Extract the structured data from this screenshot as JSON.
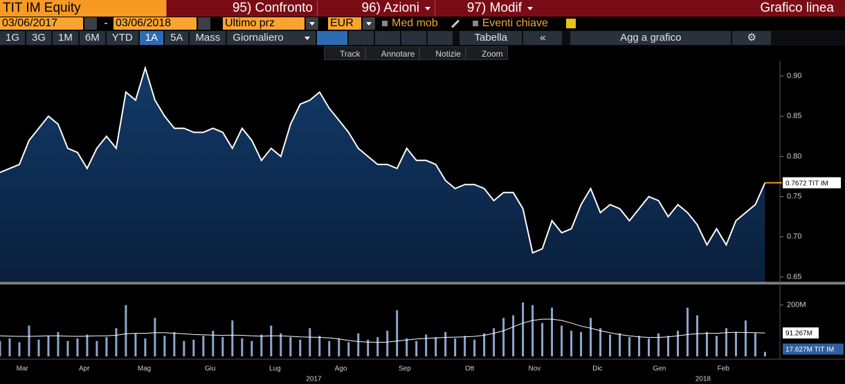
{
  "header": {
    "security": "TIT IM Equity",
    "menu": [
      "95) Confronto",
      "96) Azioni",
      "97) Modif"
    ],
    "view": "Grafico linea"
  },
  "controls": {
    "start_date": "03/06/2017",
    "separator": "-",
    "end_date": "03/06/2018",
    "field": "Ultimo prz",
    "currency": "EUR",
    "options": [
      "Med mob",
      "Eventi chiave"
    ]
  },
  "periods": [
    "1G",
    "3G",
    "1M",
    "6M",
    "YTD",
    "1A",
    "5A",
    "Mass"
  ],
  "frequency": "Giornaliero",
  "table_button": "Tabella",
  "add_button": "Agg a grafico",
  "tools": [
    "Track",
    "Annotare",
    "Notizie",
    "Zoom"
  ],
  "chart_data": [
    {
      "type": "line",
      "color": "#ffffff",
      "area_color": "#0d2a4e",
      "last_color": "#f39c1c",
      "xlim": [
        0,
        80.4
      ],
      "ylim": [
        0.644,
        0.919
      ],
      "yticks": [
        {
          "value": 0.65,
          "label": "0.65"
        },
        {
          "value": 0.7,
          "label": "0.70"
        },
        {
          "value": 0.75,
          "label": "0.75"
        },
        {
          "value": 0.8,
          "label": "0.80"
        },
        {
          "value": 0.85,
          "label": "0.85"
        },
        {
          "value": 0.9,
          "label": "0.90"
        }
      ],
      "values": [
        0.78,
        0.785,
        0.79,
        0.82,
        0.835,
        0.85,
        0.84,
        0.81,
        0.805,
        0.785,
        0.81,
        0.825,
        0.81,
        0.88,
        0.87,
        0.91,
        0.87,
        0.85,
        0.835,
        0.835,
        0.83,
        0.83,
        0.835,
        0.83,
        0.81,
        0.835,
        0.82,
        0.795,
        0.81,
        0.8,
        0.84,
        0.865,
        0.87,
        0.88,
        0.86,
        0.845,
        0.83,
        0.81,
        0.8,
        0.79,
        0.79,
        0.785,
        0.81,
        0.795,
        0.795,
        0.79,
        0.77,
        0.76,
        0.765,
        0.765,
        0.76,
        0.745,
        0.755,
        0.755,
        0.735,
        0.68,
        0.685,
        0.72,
        0.705,
        0.71,
        0.74,
        0.76,
        0.73,
        0.74,
        0.735,
        0.72,
        0.735,
        0.75,
        0.745,
        0.725,
        0.74,
        0.73,
        0.715,
        0.69,
        0.71,
        0.69,
        0.72,
        0.73,
        0.74,
        0.7672
      ],
      "last_label": "0.7672 TIT IM"
    },
    {
      "type": "bar",
      "xlim": [
        0,
        80.4
      ],
      "ylim": [
        0,
        280
      ],
      "yticks": [
        {
          "value": 200,
          "label": "200M"
        }
      ],
      "series": [
        {
          "type": "bar",
          "color": "#8ea6cf",
          "values": [
            60,
            70,
            55,
            120,
            65,
            80,
            95,
            60,
            70,
            85,
            60,
            75,
            110,
            200,
            90,
            70,
            150,
            80,
            95,
            60,
            65,
            80,
            100,
            75,
            140,
            70,
            60,
            85,
            120,
            90,
            75,
            65,
            110,
            80,
            60,
            70,
            55,
            90,
            65,
            75,
            100,
            180,
            70,
            60,
            85,
            75,
            95,
            70,
            80,
            65,
            90,
            110,
            150,
            160,
            210,
            200,
            130,
            190,
            120,
            100,
            95,
            150,
            110,
            85,
            90,
            75,
            80,
            70,
            90,
            80,
            100,
            190,
            160,
            95,
            80,
            110,
            95,
            140,
            90,
            17.627
          ],
          "last_label": "17.627M TIT IM"
        },
        {
          "type": "line",
          "color": "#ffffff",
          "values": [
            80,
            79,
            78,
            78,
            79,
            80,
            80,
            79,
            78,
            79,
            80,
            80,
            82,
            88,
            90,
            90,
            92,
            92,
            90,
            88,
            85,
            84,
            83,
            82,
            83,
            82,
            80,
            79,
            80,
            80,
            78,
            76,
            75,
            74,
            72,
            68,
            62,
            58,
            56,
            55,
            56,
            60,
            64,
            68,
            70,
            72,
            74,
            75,
            76,
            78,
            82,
            90,
            100,
            115,
            130,
            140,
            145,
            145,
            140,
            130,
            118,
            110,
            100,
            92,
            85,
            80,
            76,
            74,
            74,
            76,
            80,
            85,
            88,
            90,
            90,
            92,
            94,
            93,
            92,
            91.267
          ],
          "last_label": "91.267M"
        }
      ],
      "xticks": [
        {
          "value": 2.3,
          "label": "Mar"
        },
        {
          "value": 8.7,
          "label": "Apr"
        },
        {
          "value": 14.9,
          "label": "Mag"
        },
        {
          "value": 21.7,
          "label": "Giu"
        },
        {
          "value": 28.4,
          "label": "Lug"
        },
        {
          "value": 35.2,
          "label": "Ago"
        },
        {
          "value": 41.8,
          "label": "Sep"
        },
        {
          "value": 48.5,
          "label": "Ott"
        },
        {
          "value": 55.2,
          "label": "Nov"
        },
        {
          "value": 61.7,
          "label": "Dic"
        },
        {
          "value": 68.1,
          "label": "Gen"
        },
        {
          "value": 74.7,
          "label": "Feb"
        }
      ],
      "year_ticks": [
        {
          "value": 32.4,
          "label": "2017"
        },
        {
          "value": 72.6,
          "label": "2018"
        }
      ]
    }
  ]
}
